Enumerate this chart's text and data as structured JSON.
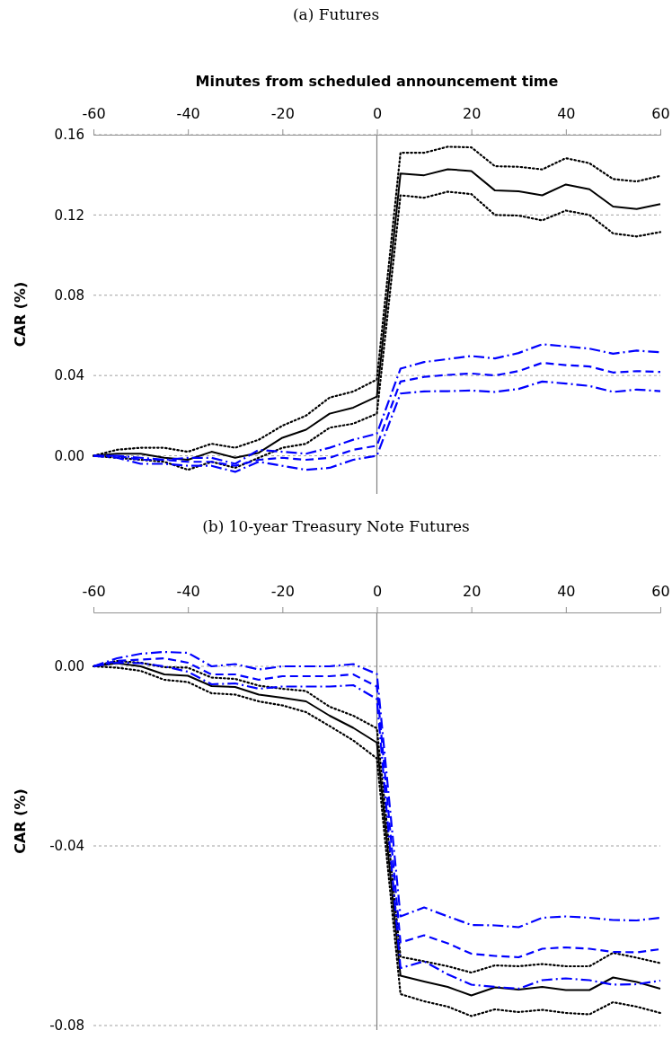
{
  "chart_data": [
    {
      "type": "line",
      "title": "(a) Futures",
      "xlabel": "Minutes from scheduled announcement time",
      "ylabel": "CAR (%)",
      "x": [
        -60,
        -55,
        -50,
        -45,
        -40,
        -35,
        -30,
        -25,
        -20,
        -15,
        -10,
        -5,
        0,
        5,
        10,
        15,
        20,
        25,
        30,
        35,
        40,
        45,
        50,
        55,
        60
      ],
      "xlim": [
        -60,
        60
      ],
      "xticks": [
        -60,
        -40,
        -20,
        0,
        20,
        40,
        60
      ],
      "ylim": [
        -0.019,
        0.16
      ],
      "yticks": [
        {
          "value": 0,
          "label": "0.00"
        },
        {
          "value": 0.04,
          "label": "0.04"
        },
        {
          "value": 0.08,
          "label": "0.08"
        },
        {
          "value": 0.12,
          "label": "0.12"
        },
        {
          "value": 0.16,
          "label": "0.16"
        }
      ],
      "grid": "y",
      "ref_lines": [
        {
          "axis": "x",
          "value": 0,
          "color": "#808080",
          "line_style": "solid"
        }
      ],
      "series": [
        {
          "color": "#000000",
          "line_style": "dotted",
          "values": [
            0,
            0.003,
            0.004,
            0.004,
            0.002,
            0.006,
            0.004,
            0.008,
            0.015,
            0.02,
            0.029,
            0.032,
            0.038,
            0.151,
            0.151,
            0.154,
            0.1537,
            0.1443,
            0.144,
            0.1427,
            0.1483,
            0.1458,
            0.1379,
            0.1367,
            0.1395
          ]
        },
        {
          "color": "#000000",
          "line_style": "solid",
          "values": [
            0,
            0.001,
            0.001,
            -0.001,
            -0.002,
            0.002,
            -0.001,
            0.0015,
            0.009,
            0.013,
            0.021,
            0.024,
            0.0295,
            0.1406,
            0.1398,
            0.1428,
            0.1419,
            0.1322,
            0.1318,
            0.1298,
            0.1352,
            0.1328,
            0.1242,
            0.123,
            0.1254
          ]
        },
        {
          "color": "#000000",
          "line_style": "dotted",
          "values": [
            0,
            -0.001,
            -0.002,
            -0.003,
            -0.007,
            -0.003,
            -0.006,
            -0.001,
            0.004,
            0.006,
            0.014,
            0.016,
            0.021,
            0.1298,
            0.1286,
            0.1316,
            0.1304,
            0.12,
            0.1197,
            0.1173,
            0.1222,
            0.12,
            0.1108,
            0.1093,
            0.1115
          ]
        },
        {
          "color": "#0000ff",
          "line_style": "dashdot",
          "values": [
            0,
            0,
            -0.001,
            -0.002,
            -0.001,
            -0.001,
            -0.004,
            0.003,
            0.002,
            0.001,
            0.004,
            0.008,
            0.011,
            0.0434,
            0.0467,
            0.0482,
            0.0497,
            0.0485,
            0.0512,
            0.0556,
            0.0545,
            0.0534,
            0.0509,
            0.0524,
            0.0516
          ]
        },
        {
          "color": "#0000ff",
          "line_style": "dashed",
          "values": [
            0,
            0,
            -0.002,
            -0.002,
            -0.003,
            -0.003,
            -0.005,
            -0.002,
            -0.001,
            -0.002,
            -0.001,
            0.003,
            0.005,
            0.037,
            0.0393,
            0.0403,
            0.041,
            0.04,
            0.0422,
            0.0463,
            0.0452,
            0.0445,
            0.0415,
            0.0422,
            0.0418
          ]
        },
        {
          "color": "#0000ff",
          "line_style": "dashdot",
          "values": [
            0,
            -0.001,
            -0.004,
            -0.004,
            -0.005,
            -0.005,
            -0.008,
            -0.003,
            -0.005,
            -0.007,
            -0.006,
            -0.002,
            0,
            0.031,
            0.0321,
            0.0322,
            0.0325,
            0.0318,
            0.0333,
            0.037,
            0.036,
            0.0348,
            0.0318,
            0.033,
            0.0322
          ]
        }
      ]
    },
    {
      "type": "line",
      "title": "(b) 10-year Treasury Note Futures",
      "ylabel": "CAR (%)",
      "x": [
        -60,
        -55,
        -50,
        -45,
        -40,
        -35,
        -30,
        -25,
        -20,
        -15,
        -10,
        -5,
        0,
        5,
        10,
        15,
        20,
        25,
        30,
        35,
        40,
        45,
        50,
        55,
        60
      ],
      "xlim": [
        -60,
        60
      ],
      "xticks": [
        -60,
        -40,
        -20,
        0,
        20,
        40,
        60
      ],
      "ylim": [
        -0.081,
        0.012
      ],
      "yticks": [
        {
          "value": -0.08,
          "label": "-0.08"
        },
        {
          "value": -0.04,
          "label": "-0.04"
        },
        {
          "value": 0,
          "label": "0.00"
        }
      ],
      "grid": "y",
      "ref_lines": [
        {
          "axis": "x",
          "value": 0,
          "color": "#808080",
          "line_style": "solid"
        }
      ],
      "series": [
        {
          "color": "#000000",
          "line_style": "dotted",
          "values": [
            0,
            0.0012,
            0.0008,
            -0.0002,
            -0.0003,
            -0.0025,
            -0.0028,
            -0.0043,
            -0.005,
            -0.0055,
            -0.009,
            -0.011,
            -0.0138,
            -0.0647,
            -0.0657,
            -0.0668,
            -0.0682,
            -0.0666,
            -0.0668,
            -0.0663,
            -0.0668,
            -0.0668,
            -0.0638,
            -0.0649,
            -0.0661
          ]
        },
        {
          "color": "#000000",
          "line_style": "solid",
          "values": [
            0,
            0.0007,
            0,
            -0.0018,
            -0.0021,
            -0.0044,
            -0.0046,
            -0.0063,
            -0.007,
            -0.0078,
            -0.011,
            -0.0137,
            -0.017,
            -0.0689,
            -0.0702,
            -0.0714,
            -0.0733,
            -0.0715,
            -0.072,
            -0.0714,
            -0.0721,
            -0.0721,
            -0.0693,
            -0.0703,
            -0.0718
          ]
        },
        {
          "color": "#000000",
          "line_style": "dotted",
          "values": [
            0,
            -0.0003,
            -0.001,
            -0.003,
            -0.0035,
            -0.006,
            -0.0063,
            -0.0078,
            -0.0087,
            -0.0102,
            -0.0133,
            -0.0165,
            -0.0205,
            -0.073,
            -0.0746,
            -0.0758,
            -0.0779,
            -0.0764,
            -0.077,
            -0.0765,
            -0.0772,
            -0.0775,
            -0.0748,
            -0.0758,
            -0.0772
          ]
        },
        {
          "color": "#0000ff",
          "line_style": "dashdot",
          "values": [
            0,
            0.0018,
            0.0028,
            0.0032,
            0.003,
            0,
            0.0005,
            -0.0007,
            0,
            0,
            0,
            0.0005,
            -0.0017,
            -0.0557,
            -0.0537,
            -0.0557,
            -0.0576,
            -0.0577,
            -0.0581,
            -0.056,
            -0.0557,
            -0.056,
            -0.0565,
            -0.0566,
            -0.056
          ]
        },
        {
          "color": "#0000ff",
          "line_style": "dashed",
          "values": [
            0,
            0.0012,
            0.0015,
            0.0018,
            0.0008,
            -0.0018,
            -0.0018,
            -0.003,
            -0.0022,
            -0.0022,
            -0.0022,
            -0.0018,
            -0.0045,
            -0.0615,
            -0.0599,
            -0.0617,
            -0.064,
            -0.0645,
            -0.0648,
            -0.0629,
            -0.0626,
            -0.0629,
            -0.0636,
            -0.0637,
            -0.063
          ]
        },
        {
          "color": "#0000ff",
          "line_style": "dashdot",
          "values": [
            0,
            0.0008,
            0.0007,
            0,
            -0.0012,
            -0.004,
            -0.0038,
            -0.005,
            -0.0045,
            -0.0045,
            -0.0045,
            -0.0042,
            -0.0073,
            -0.0672,
            -0.0657,
            -0.0686,
            -0.0709,
            -0.0714,
            -0.0718,
            -0.0699,
            -0.0695,
            -0.0699,
            -0.0709,
            -0.0708,
            -0.07
          ]
        }
      ]
    }
  ]
}
